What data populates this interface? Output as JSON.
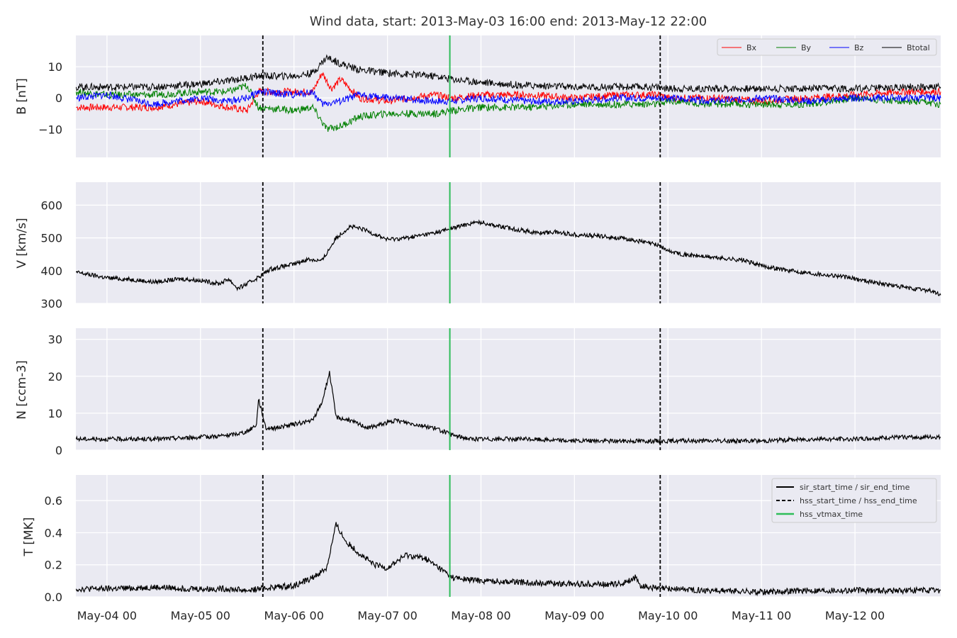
{
  "title": "Wind data, start: 2013-May-03 16:00  end: 2013-May-12 22:00",
  "x_tick_labels": [
    "May-04 00",
    "May-05 00",
    "May-06 00",
    "May-07 00",
    "May-08 00",
    "May-09 00",
    "May-10 00",
    "May-11 00",
    "May-12 00"
  ],
  "colors": {
    "panel_bg": "#eaeaf2",
    "grid": "#ffffff",
    "bx": "#ff0000",
    "by": "#008000",
    "bz": "#0000ff",
    "btotal": "#000000",
    "hss_vtmax": "#2ebd59",
    "marker": "#000000"
  },
  "legend_b": [
    "Bx",
    "By",
    "Bz",
    "Btotal"
  ],
  "legend_events": [
    "sir_start_time / sir_end_time",
    "hss_start_time / hss_end_time",
    "hss_vtmax_time"
  ],
  "chart_data": [
    {
      "type": "line",
      "ylabel": "B [nT]",
      "ylim": [
        -19,
        20
      ],
      "yticks": [
        -10,
        0,
        10
      ],
      "ytick_labels": [
        "−10",
        "0",
        "10"
      ],
      "xlim_days_from_may04_00": [
        -0.333,
        8.917
      ],
      "series": [
        {
          "name": "Bx",
          "points": [
            [
              -0.33,
              -3
            ],
            [
              0,
              -3
            ],
            [
              0.5,
              -3
            ],
            [
              1,
              -1
            ],
            [
              1.3,
              -3
            ],
            [
              1.5,
              -4
            ],
            [
              1.62,
              2
            ],
            [
              2,
              2
            ],
            [
              2.2,
              2
            ],
            [
              2.3,
              8
            ],
            [
              2.4,
              3
            ],
            [
              2.5,
              6
            ],
            [
              2.7,
              0
            ],
            [
              3,
              -1
            ],
            [
              3.5,
              1
            ],
            [
              3.7,
              0
            ],
            [
              4,
              1
            ],
            [
              4.5,
              1
            ],
            [
              5,
              0
            ],
            [
              5.5,
              1
            ],
            [
              5.9,
              1
            ],
            [
              6,
              0
            ],
            [
              6.5,
              0
            ],
            [
              7,
              -1
            ],
            [
              7.5,
              0
            ],
            [
              8,
              1
            ],
            [
              8.5,
              2
            ],
            [
              8.917,
              2
            ]
          ]
        },
        {
          "name": "By",
          "points": [
            [
              -0.33,
              2
            ],
            [
              0,
              1
            ],
            [
              0.5,
              1
            ],
            [
              1,
              2
            ],
            [
              1.3,
              2
            ],
            [
              1.5,
              4
            ],
            [
              1.62,
              -3
            ],
            [
              2,
              -4
            ],
            [
              2.2,
              -3
            ],
            [
              2.35,
              -10
            ],
            [
              2.5,
              -9
            ],
            [
              2.7,
              -6
            ],
            [
              3,
              -5
            ],
            [
              3.5,
              -5
            ],
            [
              3.7,
              -4
            ],
            [
              4,
              -3
            ],
            [
              4.5,
              -3
            ],
            [
              5,
              -2
            ],
            [
              5.5,
              -2
            ],
            [
              5.9,
              -2
            ],
            [
              6,
              -1
            ],
            [
              6.5,
              -2
            ],
            [
              7,
              -2
            ],
            [
              7.5,
              -2
            ],
            [
              8,
              0
            ],
            [
              8.5,
              -1
            ],
            [
              8.917,
              -2
            ]
          ]
        },
        {
          "name": "Bz",
          "points": [
            [
              -0.33,
              0
            ],
            [
              0,
              1
            ],
            [
              0.5,
              -2
            ],
            [
              1,
              0
            ],
            [
              1.3,
              -1
            ],
            [
              1.5,
              0
            ],
            [
              1.62,
              2
            ],
            [
              2,
              1
            ],
            [
              2.2,
              2
            ],
            [
              2.3,
              -2
            ],
            [
              2.5,
              -1
            ],
            [
              2.7,
              1
            ],
            [
              3,
              0
            ],
            [
              3.5,
              -1
            ],
            [
              3.7,
              -1
            ],
            [
              4,
              0
            ],
            [
              4.5,
              -1
            ],
            [
              5,
              -1
            ],
            [
              5.5,
              0
            ],
            [
              5.9,
              0
            ],
            [
              6,
              0
            ],
            [
              6.5,
              -1
            ],
            [
              7,
              0
            ],
            [
              7.5,
              -1
            ],
            [
              8,
              0
            ],
            [
              8.5,
              0
            ],
            [
              8.917,
              0
            ]
          ]
        },
        {
          "name": "Btotal",
          "points": [
            [
              -0.33,
              3.5
            ],
            [
              0,
              3.5
            ],
            [
              0.5,
              3.5
            ],
            [
              1,
              4.5
            ],
            [
              1.3,
              5.5
            ],
            [
              1.5,
              6.5
            ],
            [
              1.62,
              7
            ],
            [
              2,
              7
            ],
            [
              2.2,
              8
            ],
            [
              2.35,
              13
            ],
            [
              2.5,
              11
            ],
            [
              2.7,
              9
            ],
            [
              3,
              8
            ],
            [
              3.5,
              7
            ],
            [
              3.7,
              6
            ],
            [
              4,
              5
            ],
            [
              4.5,
              4
            ],
            [
              5,
              3.5
            ],
            [
              5.5,
              3.5
            ],
            [
              5.9,
              3.5
            ],
            [
              6,
              3
            ],
            [
              6.5,
              3
            ],
            [
              7,
              3
            ],
            [
              7.5,
              3
            ],
            [
              8,
              3
            ],
            [
              8.5,
              3.5
            ],
            [
              8.917,
              3.5
            ]
          ]
        }
      ]
    },
    {
      "type": "line",
      "ylabel": "V [km/s]",
      "ylim": [
        300,
        670
      ],
      "yticks": [
        300,
        400,
        500,
        600
      ],
      "ytick_labels": [
        "300",
        "400",
        "500",
        "600"
      ],
      "series": [
        {
          "name": "V",
          "points": [
            [
              -0.33,
              395
            ],
            [
              0,
              378
            ],
            [
              0.3,
              372
            ],
            [
              0.5,
              365
            ],
            [
              0.8,
              375
            ],
            [
              1,
              370
            ],
            [
              1.2,
              360
            ],
            [
              1.3,
              375
            ],
            [
              1.4,
              345
            ],
            [
              1.5,
              360
            ],
            [
              1.62,
              380
            ],
            [
              1.75,
              405
            ],
            [
              2,
              420
            ],
            [
              2.15,
              435
            ],
            [
              2.3,
              430
            ],
            [
              2.45,
              500
            ],
            [
              2.6,
              535
            ],
            [
              2.75,
              525
            ],
            [
              3,
              495
            ],
            [
              3.2,
              500
            ],
            [
              3.5,
              515
            ],
            [
              3.7,
              530
            ],
            [
              3.9,
              545
            ],
            [
              4,
              548
            ],
            [
              4.2,
              535
            ],
            [
              4.4,
              525
            ],
            [
              4.6,
              515
            ],
            [
              4.8,
              518
            ],
            [
              5,
              510
            ],
            [
              5.3,
              505
            ],
            [
              5.6,
              495
            ],
            [
              5.9,
              478
            ],
            [
              6,
              460
            ],
            [
              6.2,
              448
            ],
            [
              6.5,
              440
            ],
            [
              6.8,
              432
            ],
            [
              7,
              415
            ],
            [
              7.3,
              400
            ],
            [
              7.6,
              390
            ],
            [
              7.8,
              385
            ],
            [
              8,
              375
            ],
            [
              8.3,
              360
            ],
            [
              8.6,
              345
            ],
            [
              8.8,
              340
            ],
            [
              8.917,
              325
            ]
          ]
        }
      ]
    },
    {
      "type": "line",
      "ylabel": "N [ccm-3]",
      "ylim": [
        0,
        33
      ],
      "yticks": [
        0,
        10,
        20,
        30
      ],
      "ytick_labels": [
        "0",
        "10",
        "20",
        "30"
      ],
      "series": [
        {
          "name": "N",
          "points": [
            [
              -0.33,
              3
            ],
            [
              0,
              3
            ],
            [
              0.5,
              3
            ],
            [
              1,
              3.5
            ],
            [
              1.3,
              4
            ],
            [
              1.5,
              5
            ],
            [
              1.6,
              7
            ],
            [
              1.62,
              14
            ],
            [
              1.7,
              6
            ],
            [
              1.8,
              6
            ],
            [
              2,
              7
            ],
            [
              2.2,
              8
            ],
            [
              2.3,
              13
            ],
            [
              2.38,
              21
            ],
            [
              2.45,
              9
            ],
            [
              2.6,
              8
            ],
            [
              2.8,
              6
            ],
            [
              3,
              7.5
            ],
            [
              3.1,
              8
            ],
            [
              3.3,
              7
            ],
            [
              3.5,
              6
            ],
            [
              3.7,
              4
            ],
            [
              3.9,
              3
            ],
            [
              4,
              3
            ],
            [
              4.5,
              3
            ],
            [
              5,
              2.5
            ],
            [
              5.5,
              2.5
            ],
            [
              5.9,
              2.5
            ],
            [
              6,
              2.5
            ],
            [
              6.5,
              2.5
            ],
            [
              7,
              2.5
            ],
            [
              7.5,
              3
            ],
            [
              8,
              3
            ],
            [
              8.5,
              3.5
            ],
            [
              8.917,
              3.5
            ]
          ]
        }
      ]
    },
    {
      "type": "line",
      "ylabel": "T [MK]",
      "ylim": [
        0,
        0.76
      ],
      "yticks": [
        0.0,
        0.2,
        0.4,
        0.6
      ],
      "ytick_labels": [
        "0.0",
        "0.2",
        "0.4",
        "0.6"
      ],
      "series": [
        {
          "name": "T",
          "points": [
            [
              -0.33,
              0.05
            ],
            [
              0,
              0.05
            ],
            [
              0.5,
              0.06
            ],
            [
              1,
              0.05
            ],
            [
              1.3,
              0.05
            ],
            [
              1.5,
              0.04
            ],
            [
              1.62,
              0.05
            ],
            [
              1.8,
              0.06
            ],
            [
              2,
              0.07
            ],
            [
              2.2,
              0.12
            ],
            [
              2.35,
              0.18
            ],
            [
              2.45,
              0.45
            ],
            [
              2.55,
              0.35
            ],
            [
              2.7,
              0.27
            ],
            [
              2.85,
              0.2
            ],
            [
              3,
              0.18
            ],
            [
              3.2,
              0.26
            ],
            [
              3.4,
              0.24
            ],
            [
              3.6,
              0.16
            ],
            [
              3.7,
              0.12
            ],
            [
              3.8,
              0.11
            ],
            [
              4,
              0.1
            ],
            [
              4.5,
              0.09
            ],
            [
              5,
              0.08
            ],
            [
              5.5,
              0.08
            ],
            [
              5.65,
              0.12
            ],
            [
              5.7,
              0.07
            ],
            [
              5.9,
              0.05
            ],
            [
              6,
              0.05
            ],
            [
              6.5,
              0.04
            ],
            [
              7,
              0.03
            ],
            [
              7.5,
              0.04
            ],
            [
              8,
              0.04
            ],
            [
              8.5,
              0.04
            ],
            [
              8.917,
              0.04
            ]
          ]
        }
      ]
    }
  ],
  "event_lines_days_from_may04_00": {
    "hss_start_time": 1.667,
    "hss_end_time": 5.917,
    "hss_vtmax_time": 3.667
  }
}
